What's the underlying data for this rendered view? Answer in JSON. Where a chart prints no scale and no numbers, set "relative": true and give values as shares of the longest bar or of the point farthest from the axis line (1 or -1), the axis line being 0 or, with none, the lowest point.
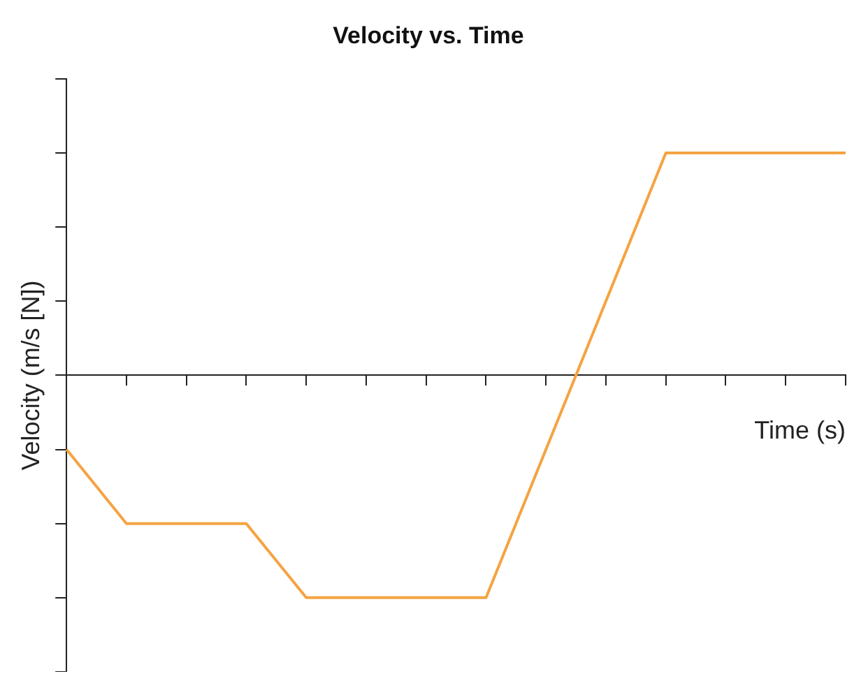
{
  "chart_data": {
    "type": "line",
    "title": "Velocity vs. Time",
    "xlabel": "Time (s)",
    "ylabel": "Velocity (m/s [N])",
    "categories": [
      null,
      null,
      null,
      null,
      null,
      null,
      null,
      null,
      null,
      null,
      null,
      null,
      null,
      null
    ],
    "relative": true,
    "series": [
      {
        "color": "#f5a342",
        "values": [
          -0.333,
          -0.667,
          -0.667,
          -0.667,
          -1,
          -1,
          -1,
          -1,
          -0.333,
          0.333,
          1,
          1,
          1,
          1
        ]
      }
    ],
    "grid": false,
    "legend": false,
    "marker": "none",
    "line_style": "solid"
  }
}
